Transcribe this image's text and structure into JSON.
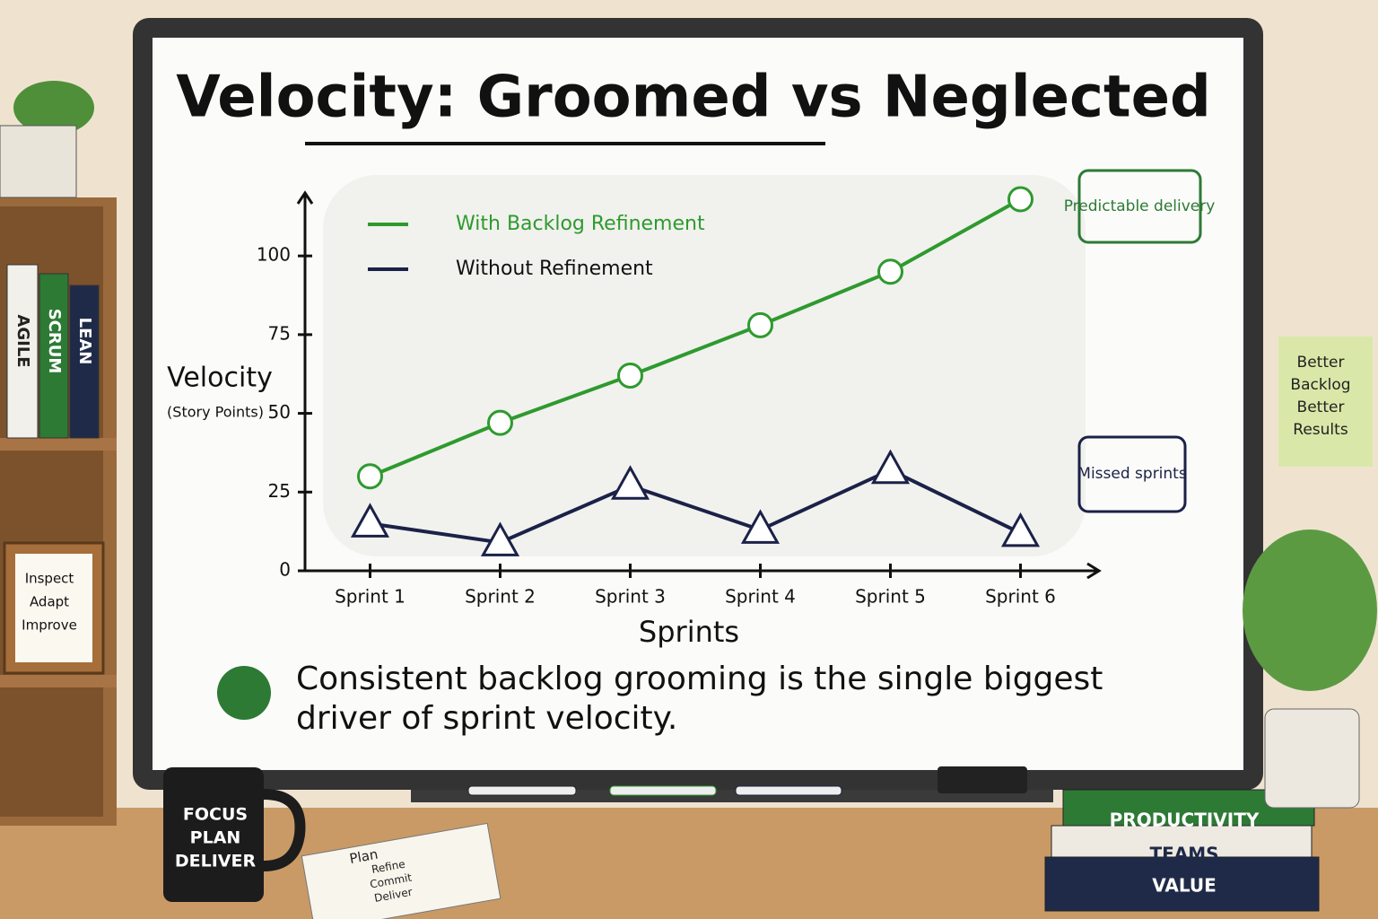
{
  "chart_data": {
    "type": "line",
    "title": "Velocity: Groomed vs Neglected",
    "x_label": "Sprints",
    "y_label": "Velocity",
    "y_sublabel": "(Story Points)",
    "categories": [
      "Sprint 1",
      "Sprint 2",
      "Sprint 3",
      "Sprint 4",
      "Sprint 5",
      "Sprint 6"
    ],
    "series": [
      {
        "name": "With Backlog Refinement",
        "color": "#2e9a2e",
        "values": [
          30,
          47,
          62,
          78,
          95,
          118
        ]
      },
      {
        "name": "Without Refinement",
        "color": "#1b2147",
        "values": [
          15,
          9,
          27,
          13,
          32,
          12
        ]
      }
    ],
    "ylim": [
      0,
      120
    ],
    "yticks": [
      0,
      25,
      50,
      75,
      100
    ],
    "legend": "top-left",
    "annotations": [
      "Predictable delivery",
      "Missed sprints"
    ],
    "takeaway": "Consistent backlog grooming is the single biggest driver of sprint velocity."
  },
  "scene": {
    "shelf_books": [
      "AGILE",
      "SCRUM",
      "LEAN"
    ],
    "frame": [
      "Inspect",
      "Adapt",
      "Improve"
    ],
    "sticky_note": [
      "Better",
      "Backlog",
      "Better",
      "Results"
    ],
    "mug": [
      "FOCUS",
      "PLAN",
      "DELIVER"
    ],
    "notebook": [
      "Plan",
      "Refine",
      "Commit",
      "Deliver"
    ],
    "desk_books": [
      "PRODUCTIVITY",
      "TEAMS",
      "VALUE"
    ]
  }
}
